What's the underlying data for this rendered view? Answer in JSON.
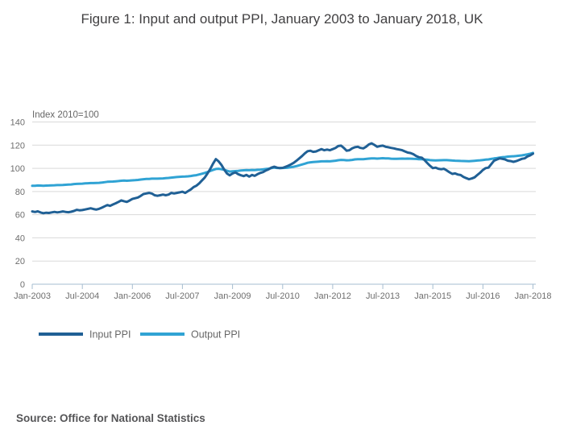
{
  "title": "Figure 1: Input and output PPI, January 2003 to January 2018, UK",
  "source": "Source: Office for National Statistics",
  "colors": {
    "input_ppi": "#206095",
    "output_ppi": "#30A3D4",
    "gridline": "#d9d9d9",
    "axis_line": "#a6bdd0",
    "tick_label": "#6e6e6e",
    "index_label": "#666666",
    "legend_text": "#666666",
    "title_text": "#414042"
  },
  "chart_data": {
    "type": "line",
    "title": "Figure 1: Input and output PPI, January 2003 to January 2018, UK",
    "index_label": "Index 2010=100",
    "xlabel": "",
    "ylabel": "Index 2010=100",
    "ylim": [
      0,
      140
    ],
    "ytick_interval": 20,
    "ytick_labels": [
      "0",
      "20",
      "40",
      "60",
      "80",
      "100",
      "120",
      "140"
    ],
    "grid": "horizontal",
    "legend_position": "bottom-left",
    "x_start": "Jan-2003",
    "x_end": "Jan-2018",
    "months_span": 180,
    "x_tick_step_months": 18,
    "x_tick_labels": [
      "Jan-2003",
      "Jul-2004",
      "Jan-2006",
      "Jul-2007",
      "Jan-2009",
      "Jul-2010",
      "Jan-2012",
      "Jul-2013",
      "Jan-2015",
      "Jul-2016",
      "Jan-2018"
    ],
    "series": [
      {
        "name": "Output PPI",
        "color": "#30A3D4",
        "values": [
          84.9,
          85,
          85.2,
          85.1,
          85,
          85.1,
          85.2,
          85.3,
          85.4,
          85.5,
          85.5,
          85.6,
          85.8,
          86,
          86.1,
          86.4,
          86.6,
          86.7,
          86.8,
          87,
          87.1,
          87.3,
          87.3,
          87.4,
          87.5,
          87.7,
          88,
          88.4,
          88.5,
          88.6,
          88.8,
          89,
          89.3,
          89.4,
          89.3,
          89.4,
          89.6,
          89.8,
          90,
          90.3,
          90.6,
          90.8,
          90.9,
          91.1,
          91.1,
          91.1,
          91.2,
          91.3,
          91.5,
          91.7,
          92,
          92.3,
          92.5,
          92.7,
          92.8,
          92.9,
          93.1,
          93.4,
          93.8,
          94.1,
          94.7,
          95.3,
          96,
          96.8,
          97.7,
          98.6,
          99.4,
          99.6,
          99.2,
          98.7,
          97.9,
          97.2,
          97.4,
          97.6,
          97.8,
          98.1,
          98.3,
          98.5,
          98.4,
          98.6,
          98.5,
          98.7,
          98.9,
          99.1,
          99.4,
          99.7,
          100.2,
          100.6,
          100.3,
          100.2,
          100.3,
          100.4,
          100.6,
          101,
          101.4,
          101.9,
          102.6,
          103.3,
          104,
          104.8,
          105.2,
          105.4,
          105.6,
          105.8,
          106,
          106,
          106.1,
          106,
          106.3,
          106.6,
          107,
          107.3,
          107.2,
          106.9,
          107,
          107.3,
          107.7,
          107.9,
          107.9,
          107.8,
          108.1,
          108.4,
          108.6,
          108.5,
          108.4,
          108.5,
          108.7,
          108.6,
          108.5,
          108.3,
          108.2,
          108.2,
          108.3,
          108.4,
          108.3,
          108.4,
          108.3,
          108.2,
          108.1,
          107.9,
          107.8,
          107.6,
          107.4,
          107.1,
          106.9,
          106.8,
          106.9,
          107,
          107.1,
          107.1,
          106.9,
          106.7,
          106.6,
          106.5,
          106.4,
          106.3,
          106.2,
          106.1,
          106.3,
          106.5,
          106.7,
          106.9,
          107.2,
          107.5,
          107.7,
          108.1,
          108.5,
          108.8,
          109.3,
          109.6,
          109.8,
          110.1,
          110.3,
          110.4,
          110.6,
          110.9,
          111.2,
          111.6,
          112.1,
          112.6,
          113.3
        ]
      },
      {
        "name": "Input PPI",
        "color": "#206095",
        "values": [
          62.8,
          62.3,
          62.9,
          61.9,
          61.3,
          61.7,
          61.5,
          62,
          62.4,
          62,
          62.3,
          62.8,
          62.4,
          62.1,
          62.5,
          63.2,
          64.2,
          63.8,
          64,
          64.5,
          65,
          65.5,
          64.9,
          64.4,
          65,
          66,
          67.2,
          68.3,
          67.6,
          68.8,
          69.8,
          71,
          72.3,
          71.6,
          71,
          72.2,
          73.6,
          74.2,
          74.8,
          76.2,
          77.8,
          78.3,
          78.8,
          78.2,
          76.8,
          76.3,
          76.8,
          77.3,
          76.8,
          77.3,
          78.8,
          78.3,
          78.8,
          79.3,
          79.8,
          78.8,
          80.3,
          81.8,
          83.8,
          85,
          87,
          89.5,
          92,
          95.5,
          99.5,
          104,
          108,
          106,
          103,
          99,
          95.5,
          94,
          95.5,
          96.5,
          95,
          94,
          93.3,
          94.3,
          92.8,
          94.3,
          93.5,
          95,
          96,
          96.8,
          98.2,
          99.2,
          100.6,
          101.4,
          100.6,
          100.2,
          100.4,
          101.2,
          102.2,
          103.4,
          104.8,
          106.6,
          108.6,
          110.6,
          113,
          114.8,
          115.2,
          114.2,
          114.6,
          115.6,
          116.6,
          115.6,
          116.2,
          115.6,
          116.6,
          117.6,
          119.2,
          119.6,
          117.6,
          115.2,
          115.6,
          117.2,
          118.2,
          118.6,
          117.6,
          117.2,
          118.6,
          120.6,
          121.6,
          120.2,
          118.6,
          119.2,
          119.6,
          118.6,
          118.2,
          117.6,
          117.2,
          116.6,
          116.2,
          115.6,
          114.6,
          113.6,
          113.2,
          112.2,
          110.6,
          109.6,
          109.2,
          107.2,
          104.6,
          102.2,
          100.2,
          100.6,
          99.6,
          99.2,
          99.6,
          98.2,
          96.6,
          95.2,
          95.6,
          94.6,
          94.2,
          92.6,
          91.6,
          90.6,
          91.2,
          92.2,
          94.2,
          96.2,
          98.6,
          100.2,
          100.6,
          103.6,
          106.6,
          107.6,
          108.6,
          108.2,
          107.6,
          106.6,
          106.2,
          105.6,
          106.2,
          107.2,
          108.2,
          108.6,
          110.2,
          111.2,
          112.6
        ]
      }
    ],
    "legend": [
      {
        "label": "Input PPI",
        "color": "#206095"
      },
      {
        "label": "Output PPI",
        "color": "#30A3D4"
      }
    ]
  }
}
